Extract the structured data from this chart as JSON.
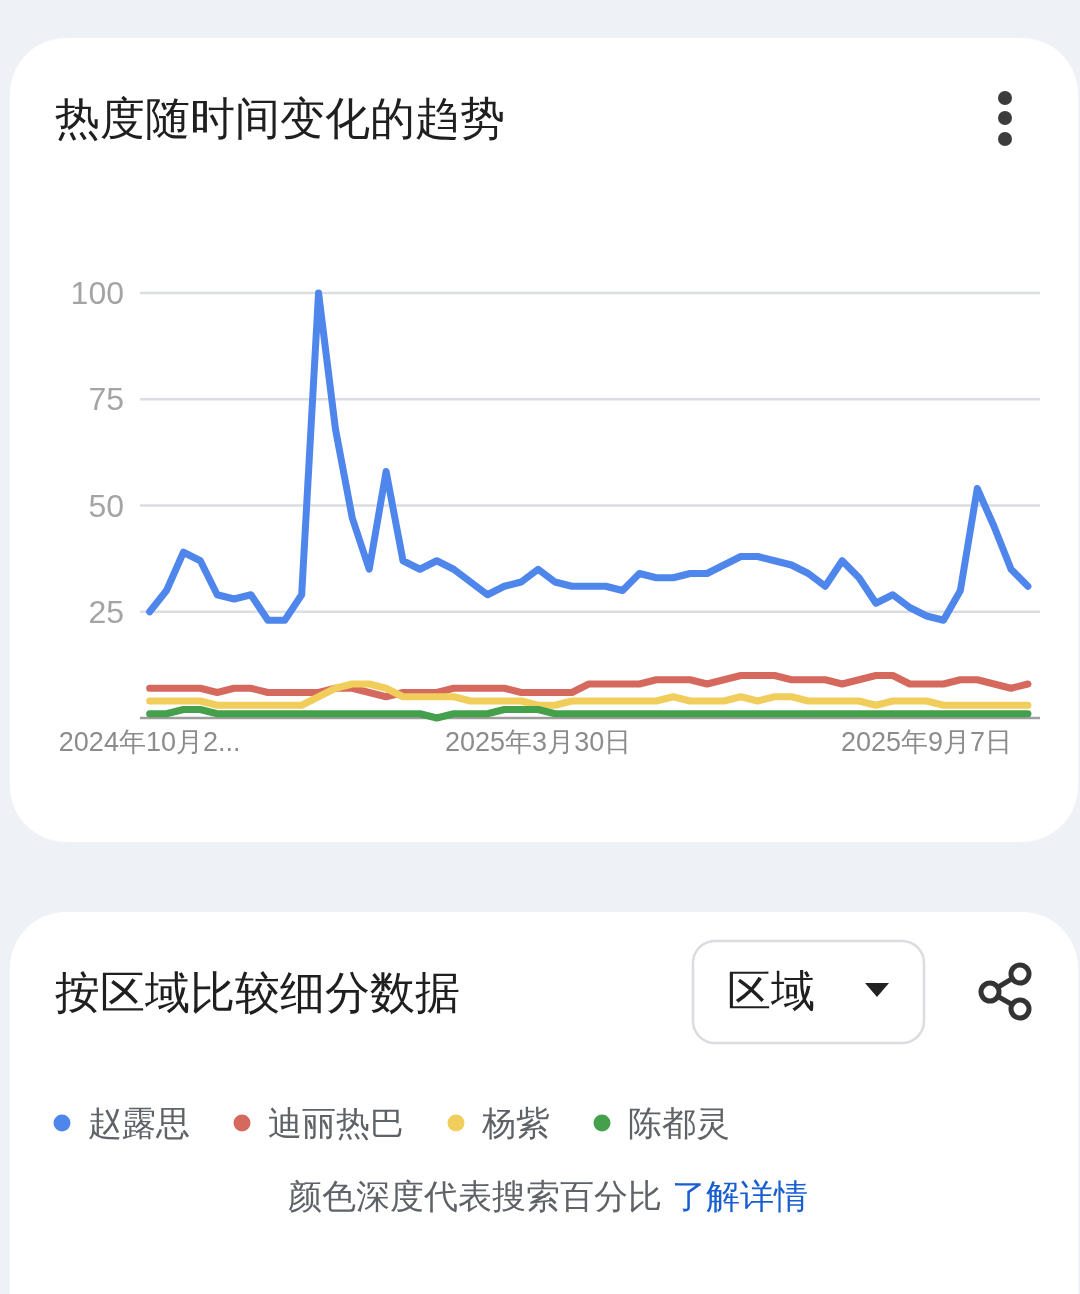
{
  "chart_data": {
    "type": "line",
    "title": "热度随时间变化的趋势",
    "x": [
      "2024-10-20",
      "2024-10-27",
      "2024-11-03",
      "2024-11-10",
      "2024-11-17",
      "2024-11-24",
      "2024-12-01",
      "2024-12-08",
      "2024-12-15",
      "2024-12-22",
      "2024-12-29",
      "2025-01-05",
      "2025-01-12",
      "2025-01-19",
      "2025-01-26",
      "2025-02-02",
      "2025-02-09",
      "2025-02-16",
      "2025-02-23",
      "2025-03-02",
      "2025-03-09",
      "2025-03-16",
      "2025-03-23",
      "2025-03-30",
      "2025-04-06",
      "2025-04-13",
      "2025-04-20",
      "2025-04-27",
      "2025-05-04",
      "2025-05-11",
      "2025-05-18",
      "2025-05-25",
      "2025-06-01",
      "2025-06-08",
      "2025-06-15",
      "2025-06-22",
      "2025-06-29",
      "2025-07-06",
      "2025-07-13",
      "2025-07-20",
      "2025-07-27",
      "2025-08-03",
      "2025-08-10",
      "2025-08-17",
      "2025-08-24",
      "2025-08-31",
      "2025-09-07",
      "2025-09-14",
      "2025-09-21",
      "2025-09-28",
      "2025-10-05",
      "2025-10-12",
      "2025-10-19"
    ],
    "series": [
      {
        "name": "赵露思",
        "color": "#4f86ec",
        "values": [
          25,
          30,
          39,
          37,
          29,
          28,
          29,
          23,
          23,
          29,
          100,
          68,
          47,
          35,
          58,
          37,
          35,
          37,
          35,
          32,
          29,
          31,
          32,
          35,
          32,
          31,
          31,
          31,
          30,
          34,
          33,
          33,
          34,
          34,
          36,
          38,
          38,
          37,
          36,
          34,
          31,
          37,
          33,
          27,
          29,
          26,
          24,
          23,
          30,
          54,
          45,
          35,
          31
        ]
      },
      {
        "name": "迪丽热巴",
        "color": "#d6695e",
        "values": [
          7,
          7,
          7,
          7,
          6,
          7,
          7,
          6,
          6,
          6,
          6,
          7,
          7,
          6,
          5,
          6,
          6,
          6,
          7,
          7,
          7,
          7,
          6,
          6,
          6,
          6,
          8,
          8,
          8,
          8,
          9,
          9,
          9,
          8,
          9,
          10,
          10,
          10,
          9,
          9,
          9,
          8,
          9,
          10,
          10,
          8,
          8,
          8,
          9,
          9,
          8,
          7,
          8
        ]
      },
      {
        "name": "杨紫",
        "color": "#f1cd5c",
        "values": [
          4,
          4,
          4,
          4,
          3,
          3,
          3,
          3,
          3,
          3,
          5,
          7,
          8,
          8,
          7,
          5,
          5,
          5,
          5,
          4,
          4,
          4,
          4,
          3,
          3,
          4,
          4,
          4,
          4,
          4,
          4,
          5,
          4,
          4,
          4,
          5,
          4,
          5,
          5,
          4,
          4,
          4,
          4,
          3,
          4,
          4,
          4,
          3,
          3,
          3,
          3,
          3,
          3
        ]
      },
      {
        "name": "陈都灵",
        "color": "#44a04a",
        "values": [
          1,
          1,
          2,
          2,
          1,
          1,
          1,
          1,
          1,
          1,
          1,
          1,
          1,
          1,
          1,
          1,
          1,
          0,
          1,
          1,
          1,
          2,
          2,
          2,
          1,
          1,
          1,
          1,
          1,
          1,
          1,
          1,
          1,
          1,
          1,
          1,
          1,
          1,
          1,
          1,
          1,
          1,
          1,
          1,
          1,
          1,
          1,
          1,
          1,
          1,
          1,
          1,
          1
        ]
      }
    ],
    "xlim": [
      "2024-10-16",
      "2025-10-24"
    ],
    "xticks": [
      {
        "value": "2024-10-20",
        "label": "2024年10月2..."
      },
      {
        "value": "2025-03-30",
        "label": "2025年3月30日"
      },
      {
        "value": "2025-09-07",
        "label": "2025年9月7日"
      }
    ],
    "ylim": [
      0,
      100
    ],
    "yticks": [
      25,
      50,
      75,
      100
    ],
    "grid": "y",
    "legend": "bottom",
    "annotations": [
      "按区域比较细分数据",
      "区域",
      "颜色深度代表搜索百分比",
      "了解详情"
    ]
  }
}
